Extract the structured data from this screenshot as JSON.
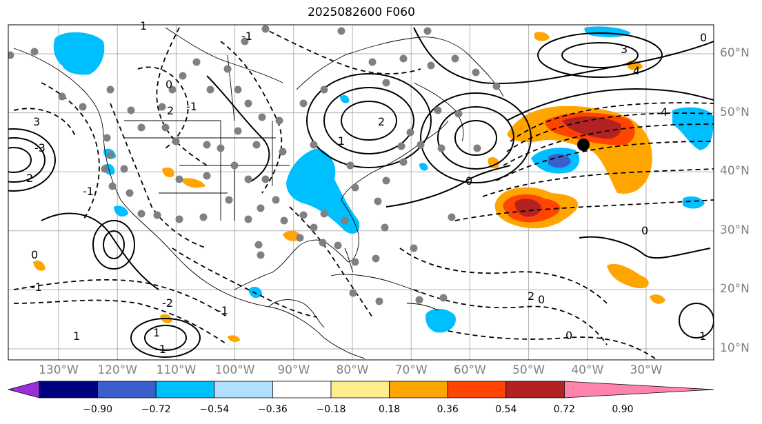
{
  "title": "2025082600 F060",
  "lat_labels": [
    {
      "text": "60°N",
      "value": 60
    },
    {
      "text": "50°N",
      "value": 50
    },
    {
      "text": "40°N",
      "value": 40
    },
    {
      "text": "30°N",
      "value": 30
    },
    {
      "text": "20°N",
      "value": 20
    },
    {
      "text": "10°N",
      "value": 10
    }
  ],
  "lon_labels": [
    {
      "text": "130°W",
      "value": -130
    },
    {
      "text": "120°W",
      "value": -120
    },
    {
      "text": "110°W",
      "value": -110
    },
    {
      "text": "100°W",
      "value": -100
    },
    {
      "text": "90°W",
      "value": -90
    },
    {
      "text": "80°W",
      "value": -80
    },
    {
      "text": "70°W",
      "value": -70
    },
    {
      "text": "60°W",
      "value": -60
    },
    {
      "text": "50°W",
      "value": -50
    },
    {
      "text": "40°W",
      "value": -40
    },
    {
      "text": "30°W",
      "value": -30
    }
  ],
  "colorbar": {
    "labels": [
      "−0.90",
      "−0.72",
      "−0.54",
      "−0.36",
      "−0.18",
      "0.18",
      "0.36",
      "0.54",
      "0.72",
      "0.90"
    ],
    "colors": [
      "#9b30d9",
      "#000080",
      "#3a5fcd",
      "#00bfff",
      "#afe0ff",
      "#ffffff",
      "#ffec8b",
      "#ffa500",
      "#ff4500",
      "#b22222",
      "#ff83aa"
    ]
  },
  "colors": {
    "pos_fill_light": "#ffa500",
    "pos_fill_mid": "#ff4500",
    "pos_fill_strong": "#b22222",
    "neg_fill_light": "#00bfff",
    "neg_fill_mid": "#3a5fcd",
    "station_dot": "#808080",
    "grid": "#b0b0b0"
  },
  "contour_labels": [
    "1",
    "3",
    "2",
    "0",
    "2",
    "-1",
    "-1",
    "3",
    "4",
    "4",
    "0",
    "0",
    "-1",
    "1",
    "0",
    "-2",
    "1",
    "0",
    "-1",
    "1",
    "2",
    "0",
    "0",
    "-1",
    "1",
    "2",
    "-1",
    "-3"
  ]
}
